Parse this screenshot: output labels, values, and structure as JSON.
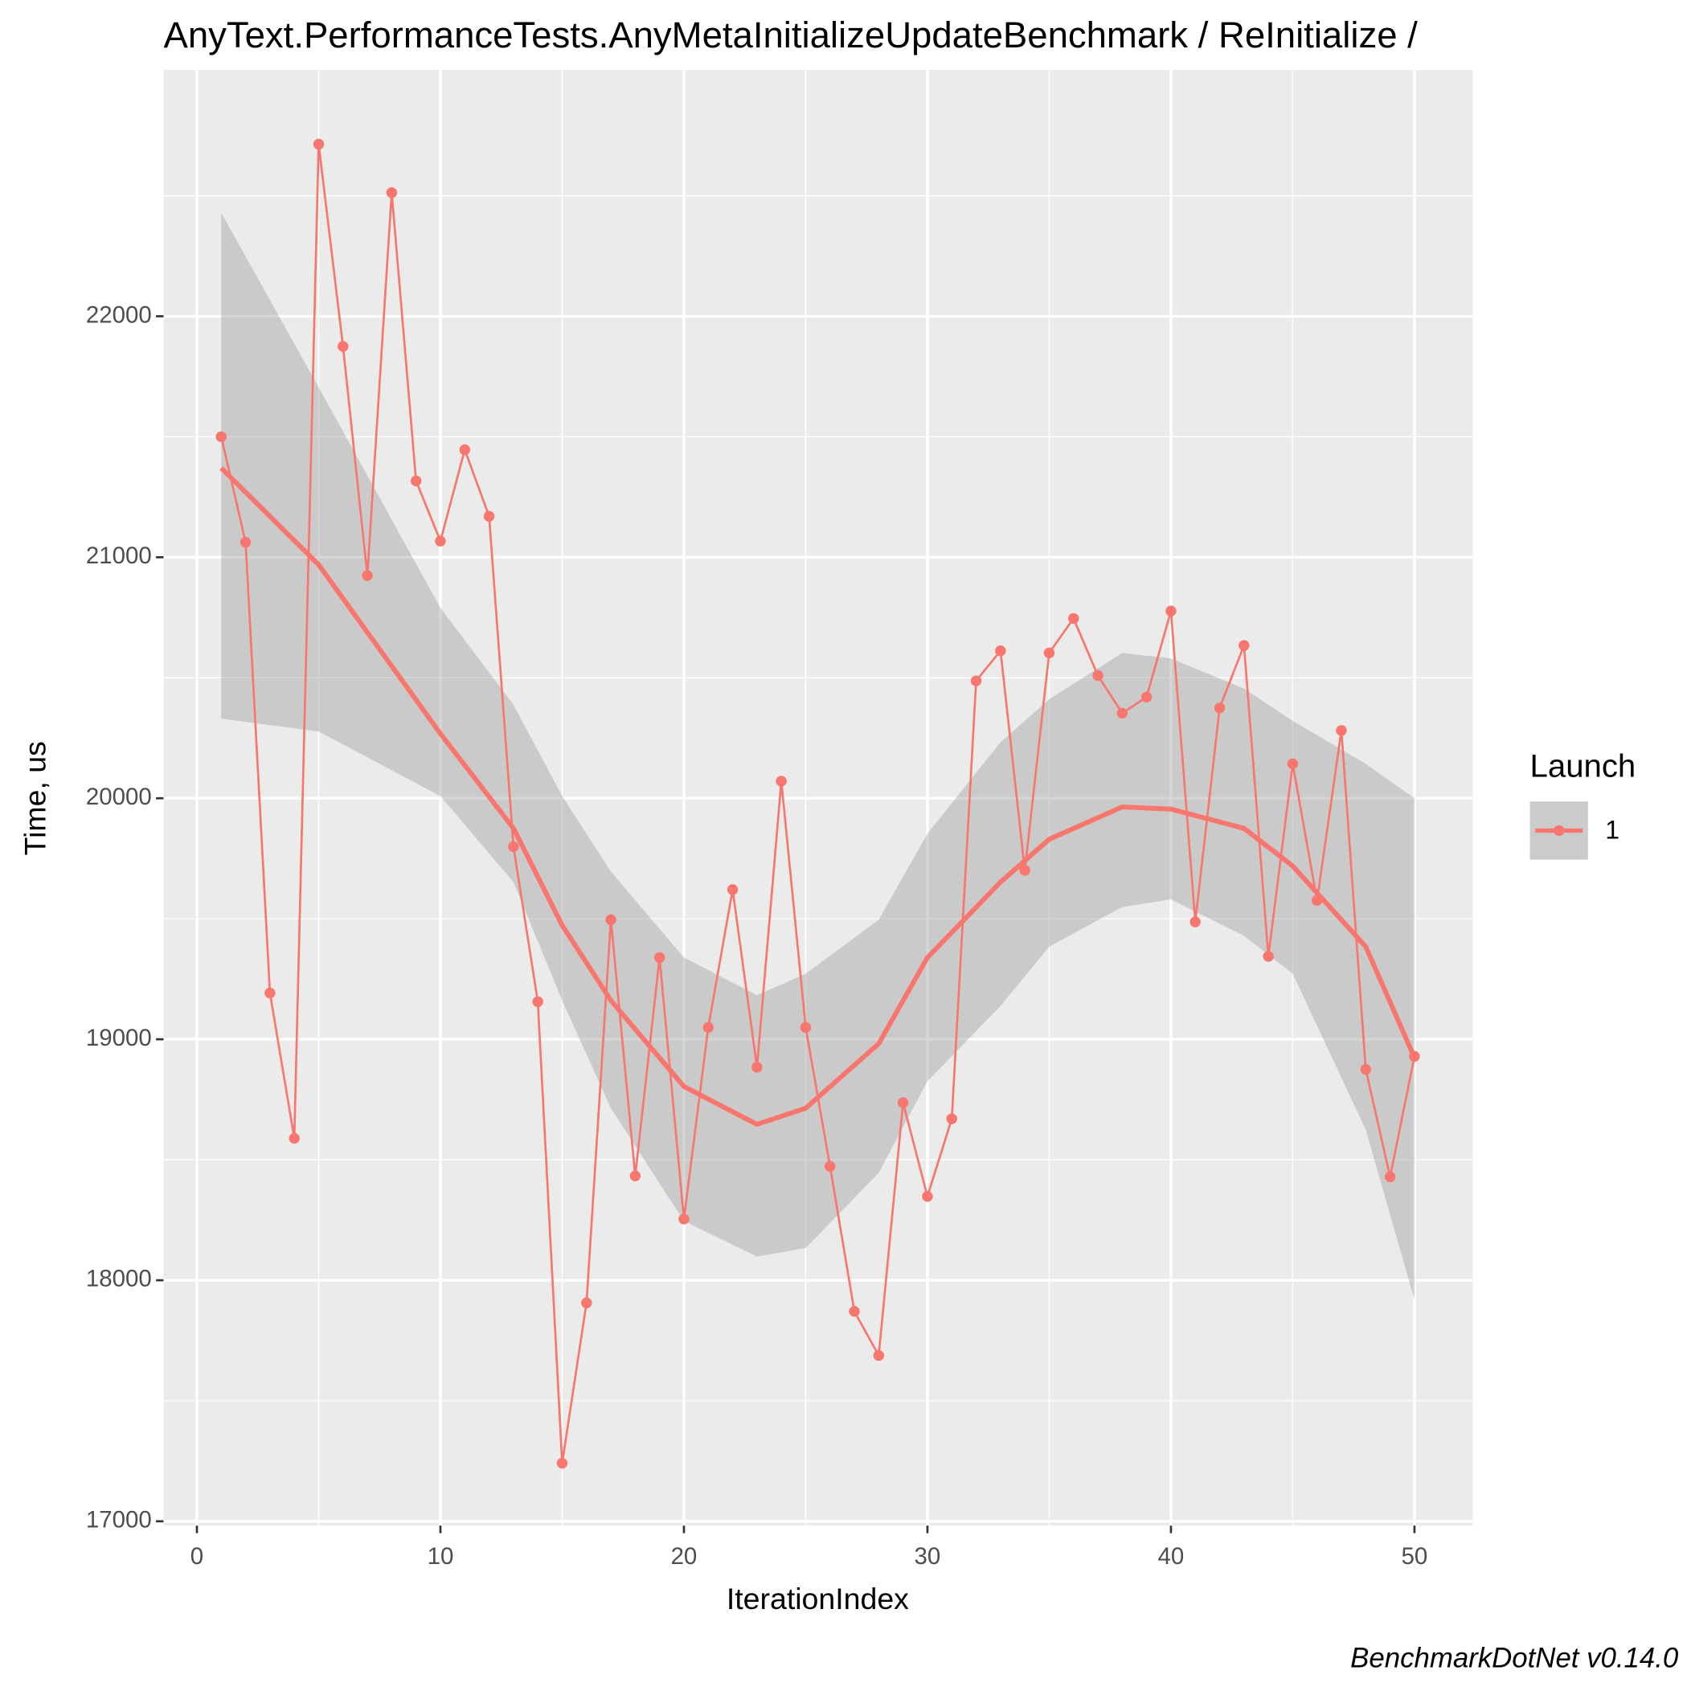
{
  "chart_data": {
    "type": "line",
    "title": "AnyText.PerformanceTests.AnyMetaInitializeUpdateBenchmark / ReInitialize /",
    "x_label": "IterationIndex",
    "y_label": "Time, us",
    "caption": "BenchmarkDotNet v0.14.0",
    "legend_title": "Launch",
    "xlim": [
      -1.37,
      52.4
    ],
    "xticks": [
      0,
      10,
      20,
      30,
      40,
      50
    ],
    "x_minor_ticks": [
      5,
      15,
      25,
      35,
      45
    ],
    "ylim": [
      16982,
      23022
    ],
    "yticks": [
      17000,
      18000,
      19000,
      20000,
      21000,
      22000
    ],
    "y_minor_ticks": [
      17500,
      18500,
      19500,
      20500,
      21500,
      22500
    ],
    "grid": true,
    "x": [
      1,
      2,
      3,
      4,
      5,
      6,
      7,
      8,
      9,
      10,
      11,
      12,
      13,
      14,
      15,
      16,
      17,
      18,
      19,
      20,
      21,
      22,
      23,
      24,
      25,
      26,
      27,
      28,
      29,
      30,
      31,
      32,
      33,
      34,
      35,
      36,
      37,
      38,
      39,
      40,
      41,
      42,
      43,
      44,
      45,
      46,
      47,
      48,
      49,
      50
    ],
    "series": [
      {
        "name": "1",
        "color": "#F8766D",
        "values": [
          21500,
          21062,
          19192,
          18589,
          22714,
          21875,
          20924,
          22513,
          21317,
          21067,
          21446,
          21170,
          19799,
          19156,
          17241,
          17906,
          19496,
          18433,
          19339,
          18254,
          19049,
          19621,
          18884,
          20071,
          19049,
          18473,
          17871,
          17688,
          18737,
          18348,
          18670,
          20487,
          20612,
          19701,
          20603,
          20746,
          20509,
          20353,
          20420,
          20777,
          19487,
          20375,
          20634,
          19344,
          20143,
          19576,
          20281,
          18875,
          18429,
          18929
        ]
      }
    ],
    "smooth": {
      "color": "#F8766D",
      "band_color": "#999999",
      "x": [
        1,
        5,
        10,
        13,
        15,
        17,
        20,
        23,
        25,
        28,
        30,
        33,
        35,
        38,
        40,
        43,
        45,
        48,
        50
      ],
      "values": [
        21370,
        20969,
        20268,
        19875,
        19473,
        19161,
        18804,
        18647,
        18714,
        18982,
        19339,
        19652,
        19830,
        19964,
        19955,
        19875,
        19719,
        19384,
        18924
      ],
      "lower": [
        20330,
        20277,
        20009,
        19652,
        19161,
        18714,
        18246,
        18098,
        18134,
        18446,
        18826,
        19138,
        19384,
        19549,
        19580,
        19429,
        19272,
        18625,
        17920
      ],
      "upper": [
        22429,
        21705,
        20790,
        20388,
        20009,
        19696,
        19339,
        19183,
        19272,
        19496,
        19853,
        20232,
        20411,
        20603,
        20580,
        20455,
        20321,
        20143,
        20000
      ]
    }
  }
}
